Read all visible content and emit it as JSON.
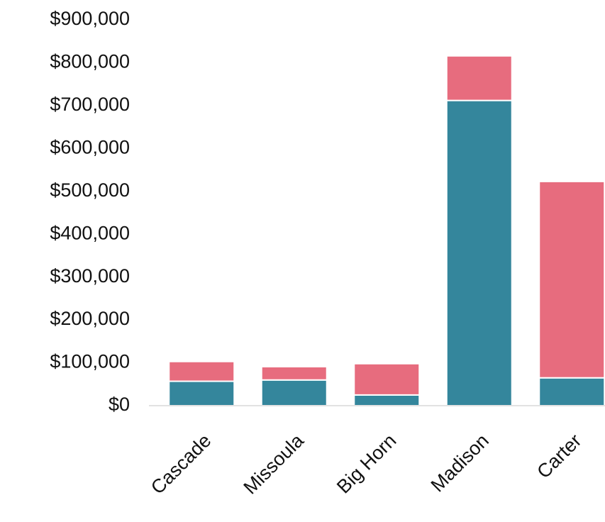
{
  "chart_data": {
    "type": "stacked_bar",
    "categories": [
      "Cascade",
      "Missoula",
      "Big Horn",
      "Madison",
      "Carter"
    ],
    "series": [
      {
        "color": "#34869c",
        "values": [
          57000,
          60000,
          25000,
          712000,
          65000
        ]
      },
      {
        "color": "#e76c7e",
        "values": [
          46000,
          31000,
          73000,
          104000,
          458000
        ]
      }
    ],
    "ylim": [
      0,
      900000
    ],
    "yticks": [
      {
        "value": 0,
        "label": "$0"
      },
      {
        "value": 100000,
        "label": "$100,000"
      },
      {
        "value": 200000,
        "label": "$200,000"
      },
      {
        "value": 300000,
        "label": "$300,000"
      },
      {
        "value": 400000,
        "label": "$400,000"
      },
      {
        "value": 500000,
        "label": "$500,000"
      },
      {
        "value": 600000,
        "label": "$600,000"
      },
      {
        "value": 700000,
        "label": "$700,000"
      },
      {
        "value": 800000,
        "label": "$800,000"
      },
      {
        "value": 900000,
        "label": "$900,000"
      }
    ],
    "grid": false
  }
}
